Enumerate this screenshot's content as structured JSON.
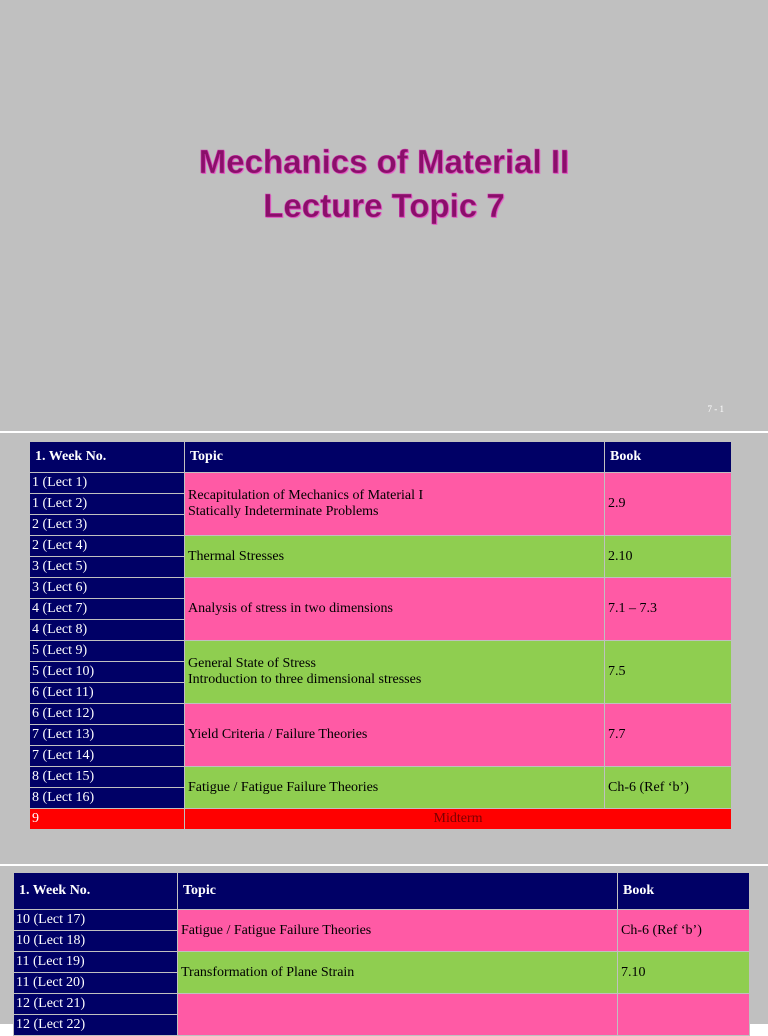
{
  "slide1": {
    "title_line1": "Mechanics of Material II",
    "title_line2": "Lecture Topic 7",
    "page_number": "7 - 1"
  },
  "schedule1": {
    "headers": [
      "1.  Week No.",
      "Topic",
      "Book"
    ],
    "weeks": [
      "1 (Lect 1)",
      "1 (Lect 2)",
      "2 (Lect 3)",
      "2 (Lect 4)",
      "3 (Lect 5)",
      "3 (Lect 6)",
      "4 (Lect 7)",
      "4 (Lect 8)",
      "5 (Lect 9)",
      "5 (Lect 10)",
      "6 (Lect 11)",
      "6 (Lect 12)",
      "7 (Lect 13)",
      "7 (Lect 14)",
      "8 (Lect 15)",
      "8 (Lect 16)",
      "9"
    ],
    "topics": [
      {
        "line1": "Recapitulation of Mechanics of Material I",
        "line2": "Statically Indeterminate Problems",
        "book": "2.9"
      },
      {
        "line1": "Thermal Stresses",
        "line2": "",
        "book": "2.10"
      },
      {
        "line1": "Analysis of stress in two dimensions",
        "line2": "",
        "book": "7.1 – 7.3"
      },
      {
        "line1": "General State of Stress",
        "line2": "Introduction to three dimensional stresses",
        "book": "7.5"
      },
      {
        "line1": "Yield Criteria / Failure Theories",
        "line2": "",
        "book": "7.7"
      },
      {
        "line1": "Fatigue / Fatigue Failure Theories",
        "line2": "",
        "book": "Ch-6 (Ref ‘b’)"
      }
    ],
    "midterm": "Midterm"
  },
  "schedule2": {
    "headers": [
      "1.  Week No.",
      "Topic",
      "Book"
    ],
    "weeks": [
      "10 (Lect 17)",
      "10 (Lect 18)",
      "11 (Lect 19)",
      "11 (Lect 20)",
      "12 (Lect 21)",
      "12 (Lect 22)"
    ],
    "topics": [
      {
        "line1": "Fatigue / Fatigue Failure Theories",
        "book": "Ch-6 (Ref ‘b’)"
      },
      {
        "line1": "Transformation of Plane Strain",
        "book": "7.10"
      },
      {
        "line1": "",
        "book": ""
      }
    ]
  },
  "colors": {
    "header": "#000066",
    "pink": "#ff5aa5",
    "green": "#8fce50",
    "midterm": "#ff0000",
    "slide": "#c0c0c0",
    "title": "#8a0f6a"
  }
}
